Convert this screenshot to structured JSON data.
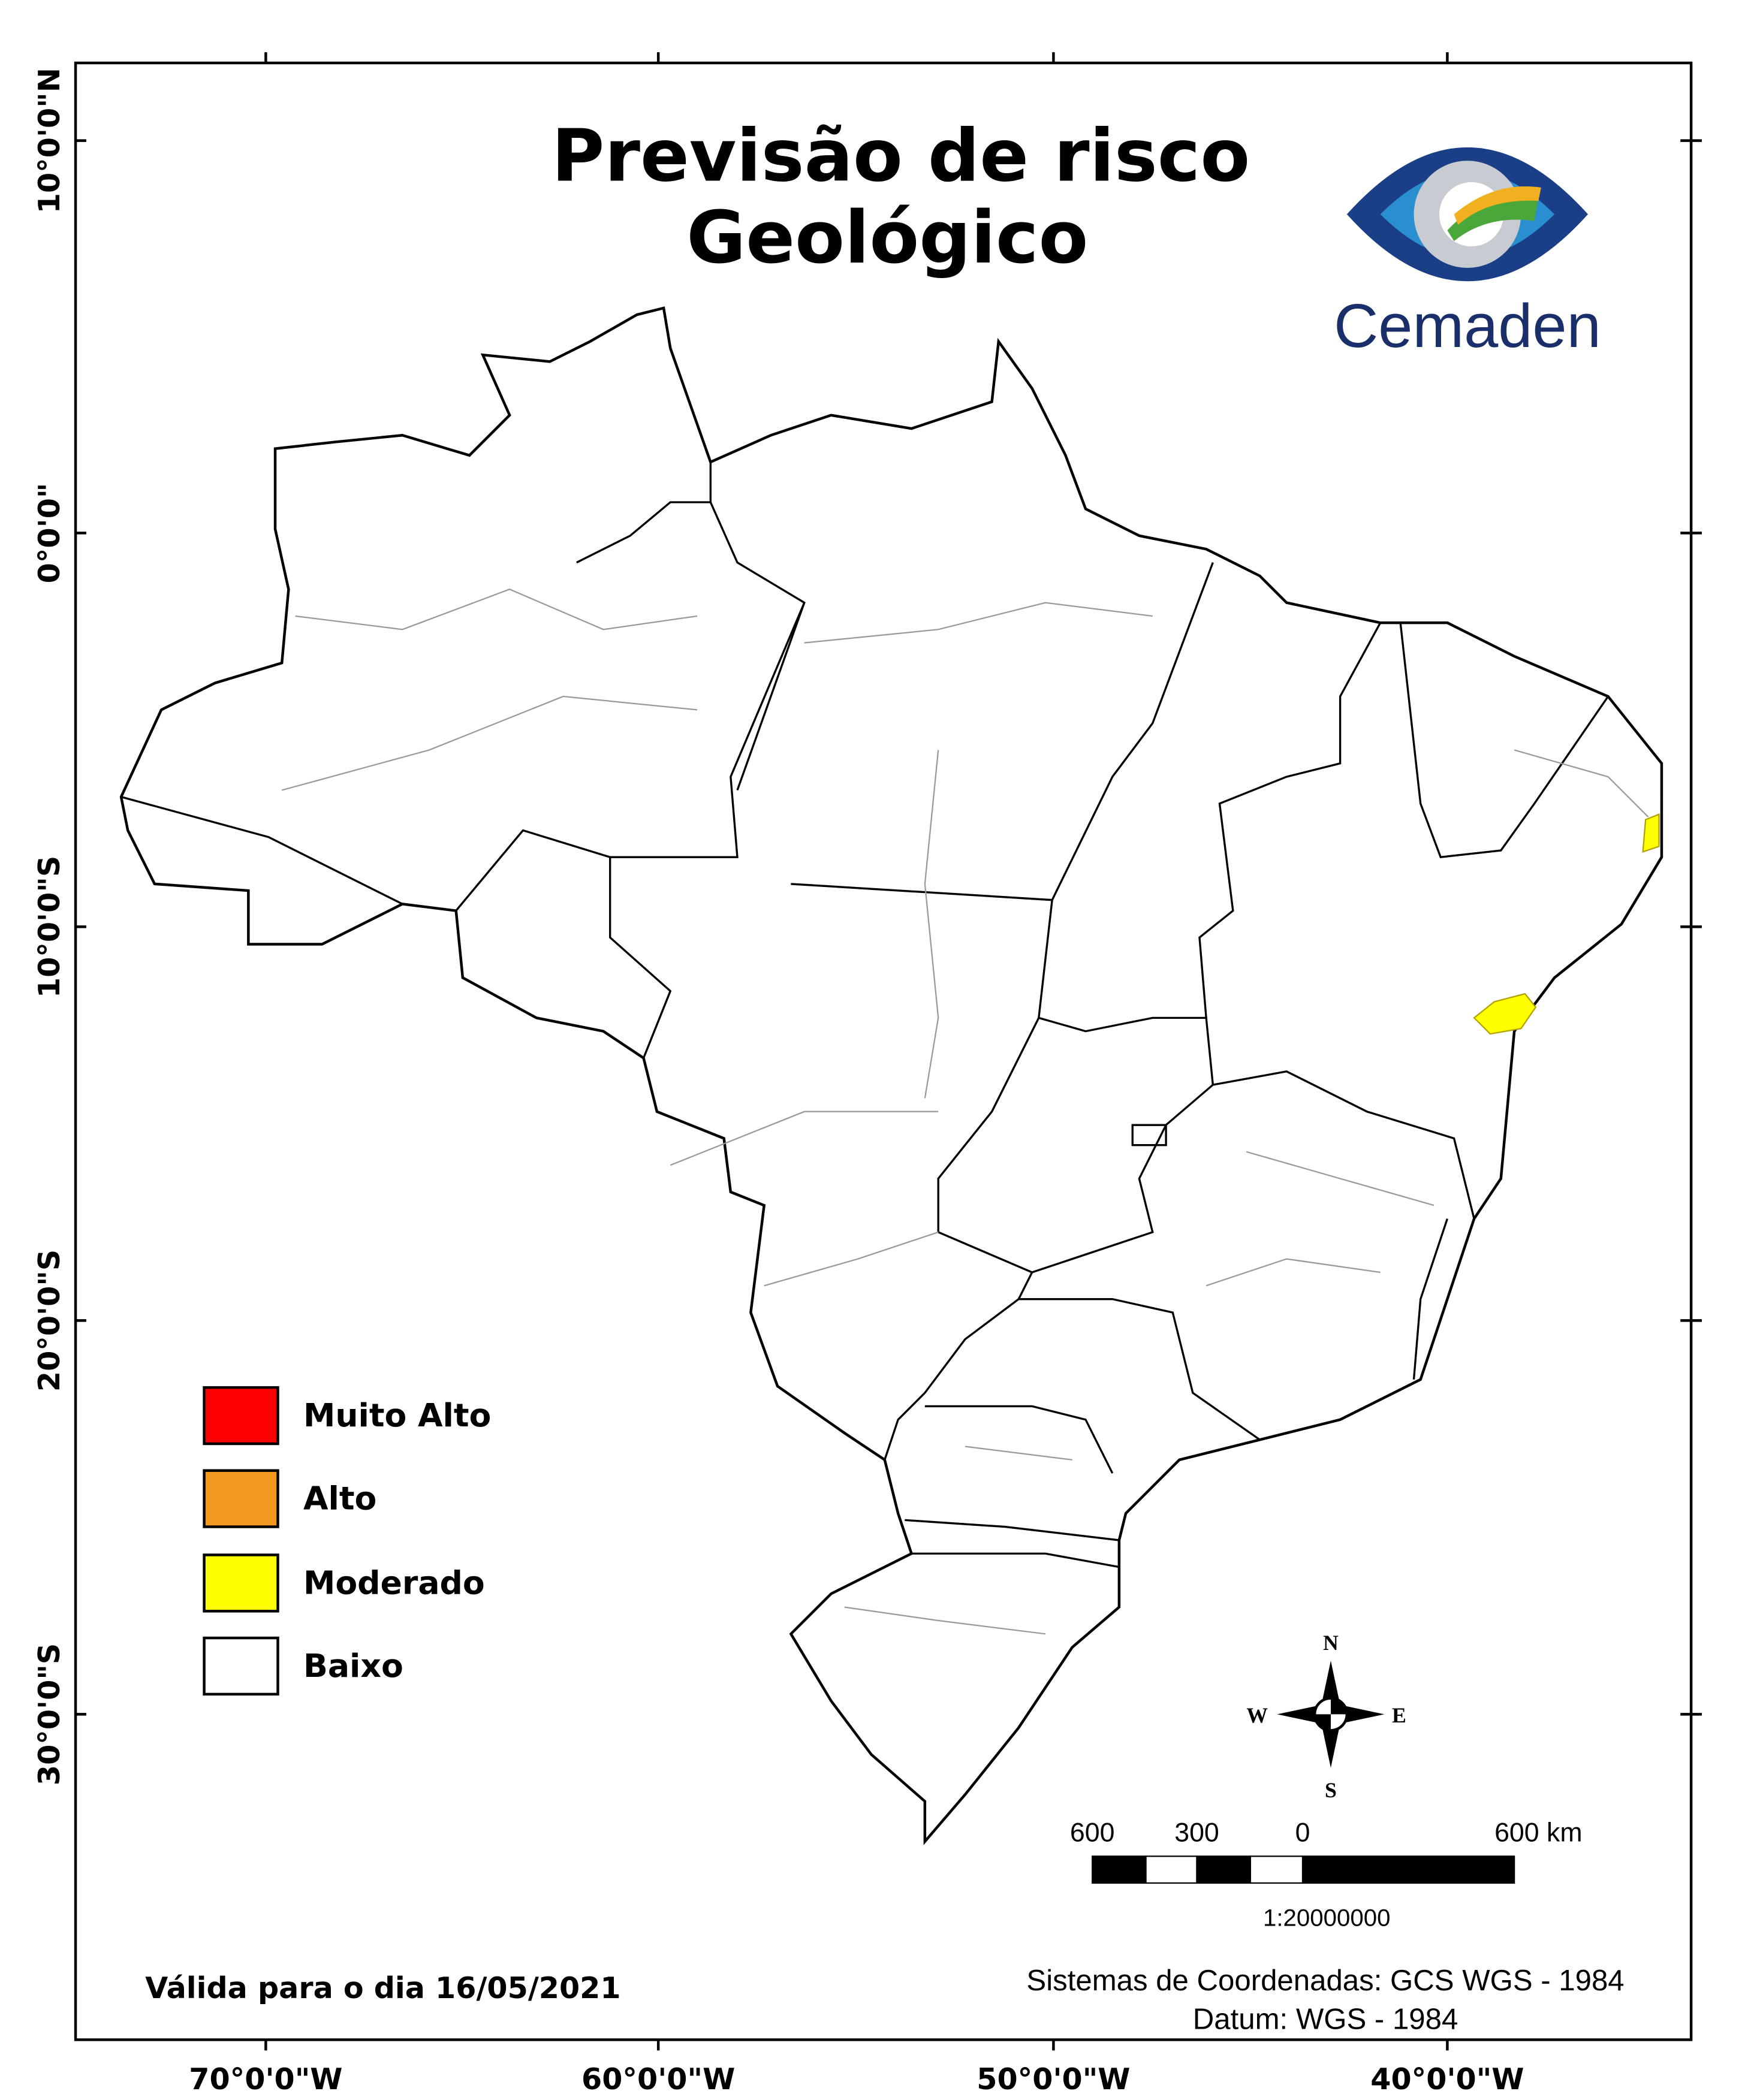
{
  "title": [
    "Previsão de risco",
    "Geológico"
  ],
  "logo": "Cemaden",
  "y_axis_labels": [
    "10°0'0\"N",
    "0°0'0\"",
    "10°0'0\"S",
    "20°0'0\"S",
    "30°0'0\"S"
  ],
  "x_axis_labels": [
    "70°0'0\"W",
    "60°0'0\"W",
    "50°0'0\"W",
    "40°0'0\"W"
  ],
  "legend": [
    {
      "label": "Muito Alto",
      "color": "#ff0000"
    },
    {
      "label": "Alto",
      "color": "#f39a1e"
    },
    {
      "label": "Moderado",
      "color": "#ffff00"
    },
    {
      "label": "Baixo",
      "color": "#ffffff"
    }
  ],
  "compass": [
    "N",
    "W",
    "E",
    "S"
  ],
  "scale": {
    "labels": [
      "600",
      "300",
      "0",
      "600 km"
    ],
    "ratio": "1:20000000"
  },
  "valid_date": "Válida para o dia 16/05/2021",
  "coordinate_system": "Sistemas de Coordenadas: GCS WGS - 1984",
  "datum": "Datum: WGS - 1984"
}
